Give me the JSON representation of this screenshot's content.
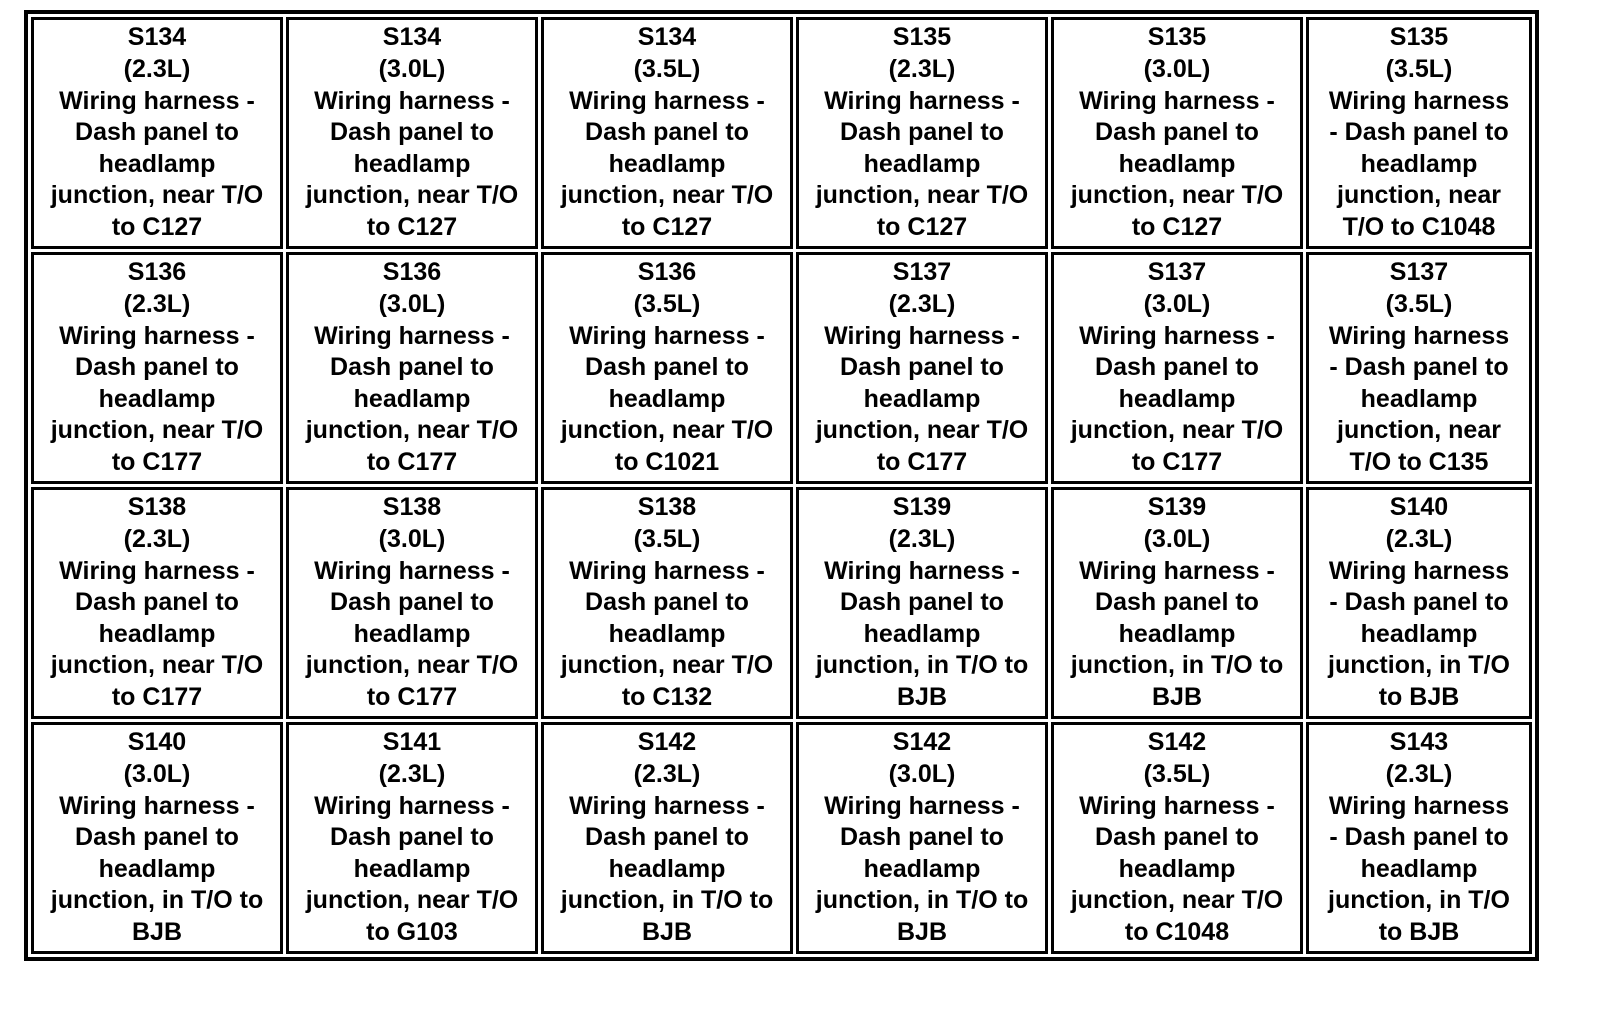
{
  "table": {
    "rows": [
      [
        {
          "lines": [
            "S134",
            "(2.3L)",
            "Wiring harness -",
            "Dash panel to",
            "headlamp",
            "junction, near T/O",
            "to C127"
          ]
        },
        {
          "lines": [
            "S134",
            "(3.0L)",
            "Wiring harness -",
            "Dash panel to",
            "headlamp",
            "junction, near T/O",
            "to C127"
          ]
        },
        {
          "lines": [
            "S134",
            "(3.5L)",
            "Wiring harness -",
            "Dash panel to",
            "headlamp",
            "junction, near T/O",
            "to C127"
          ]
        },
        {
          "lines": [
            "S135",
            "(2.3L)",
            "Wiring harness -",
            "Dash panel to",
            "headlamp",
            "junction, near T/O",
            "to C127"
          ]
        },
        {
          "lines": [
            "S135",
            "(3.0L)",
            "Wiring harness -",
            "Dash panel to",
            "headlamp",
            "junction, near T/O",
            "to C127"
          ]
        },
        {
          "lines": [
            "S135",
            "(3.5L)",
            "Wiring harness",
            "- Dash panel to",
            "headlamp",
            "junction, near",
            "T/O to C1048"
          ]
        }
      ],
      [
        {
          "lines": [
            "S136",
            "(2.3L)",
            "Wiring harness -",
            "Dash panel to",
            "headlamp",
            "junction, near T/O",
            "to C177"
          ]
        },
        {
          "lines": [
            "S136",
            "(3.0L)",
            "Wiring harness -",
            "Dash panel to",
            "headlamp",
            "junction, near T/O",
            "to C177"
          ]
        },
        {
          "lines": [
            "S136",
            "(3.5L)",
            "Wiring harness -",
            "Dash panel to",
            "headlamp",
            "junction, near T/O",
            "to C1021"
          ]
        },
        {
          "lines": [
            "S137",
            "(2.3L)",
            "Wiring harness -",
            "Dash panel to",
            "headlamp",
            "junction, near T/O",
            "to C177"
          ]
        },
        {
          "lines": [
            "S137",
            "(3.0L)",
            "Wiring harness -",
            "Dash panel to",
            "headlamp",
            "junction, near T/O",
            "to C177"
          ]
        },
        {
          "lines": [
            "S137",
            "(3.5L)",
            "Wiring harness",
            "- Dash panel to",
            "headlamp",
            "junction, near",
            "T/O to C135"
          ]
        }
      ],
      [
        {
          "lines": [
            "S138",
            "(2.3L)",
            "Wiring harness -",
            "Dash panel to",
            "headlamp",
            "junction, near T/O",
            "to C177"
          ]
        },
        {
          "lines": [
            "S138",
            "(3.0L)",
            "Wiring harness -",
            "Dash panel to",
            "headlamp",
            "junction, near T/O",
            "to C177"
          ]
        },
        {
          "lines": [
            "S138",
            "(3.5L)",
            "Wiring harness -",
            "Dash panel to",
            "headlamp",
            "junction, near T/O",
            "to C132"
          ]
        },
        {
          "lines": [
            "S139",
            "(2.3L)",
            "Wiring harness -",
            "Dash panel to",
            "headlamp",
            "junction, in T/O to",
            "BJB"
          ]
        },
        {
          "lines": [
            "S139",
            "(3.0L)",
            "Wiring harness -",
            "Dash panel to",
            "headlamp",
            "junction, in T/O to",
            "BJB"
          ]
        },
        {
          "lines": [
            "S140",
            "(2.3L)",
            "Wiring harness",
            "- Dash panel to",
            "headlamp",
            "junction, in T/O",
            "to BJB"
          ]
        }
      ],
      [
        {
          "lines": [
            "S140",
            "(3.0L)",
            "Wiring harness -",
            "Dash panel to",
            "headlamp",
            "junction, in T/O to",
            "BJB"
          ]
        },
        {
          "lines": [
            "S141",
            "(2.3L)",
            "Wiring harness -",
            "Dash panel to",
            "headlamp",
            "junction, near T/O",
            "to G103"
          ]
        },
        {
          "lines": [
            "S142",
            "(2.3L)",
            "Wiring harness -",
            "Dash panel to",
            "headlamp",
            "junction, in T/O to",
            "BJB"
          ]
        },
        {
          "lines": [
            "S142",
            "(3.0L)",
            "Wiring harness -",
            "Dash panel to",
            "headlamp",
            "junction, in T/O to",
            "BJB"
          ]
        },
        {
          "lines": [
            "S142",
            "(3.5L)",
            "Wiring harness -",
            "Dash panel to",
            "headlamp",
            "junction, near T/O",
            "to C1048"
          ]
        },
        {
          "lines": [
            "S143",
            "(2.3L)",
            "Wiring harness",
            "- Dash panel to",
            "headlamp",
            "junction, in T/O",
            "to BJB"
          ]
        }
      ]
    ]
  }
}
